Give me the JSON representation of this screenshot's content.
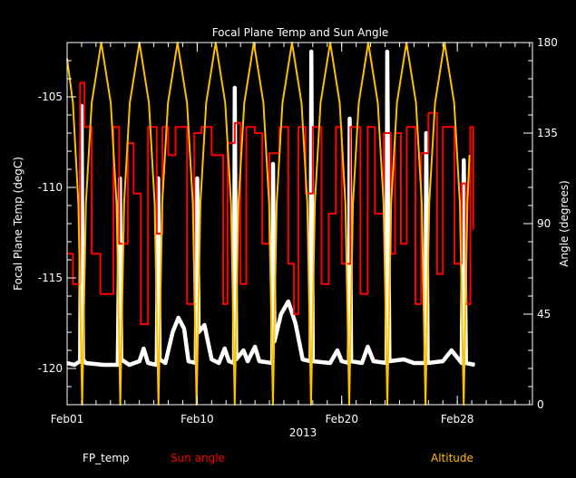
{
  "chart_data": {
    "type": "line",
    "title": "Focal Plane Temp and Sun Angle",
    "xlabel": "2013",
    "ylabel": "Focal Plane Temp (degC)",
    "ylabel_right": "Angle (degrees)",
    "x_units": "days since Feb01 2013",
    "xlim": [
      0,
      32.2
    ],
    "ylim": [
      -122,
      -102
    ],
    "ylim_right": [
      0,
      180
    ],
    "x_ticks": [
      {
        "day": 0,
        "label": "Feb01"
      },
      {
        "day": 9,
        "label": "Feb10"
      },
      {
        "day": 19,
        "label": "Feb20"
      },
      {
        "day": 27,
        "label": "Feb28"
      }
    ],
    "y_ticks": [
      {
        "value": -105,
        "label": "-105"
      },
      {
        "value": -110,
        "label": "-110"
      },
      {
        "value": -115,
        "label": "-115"
      },
      {
        "value": -120,
        "label": "-120"
      }
    ],
    "y_ticks_right": [
      {
        "value": 0,
        "label": "0"
      },
      {
        "value": 45,
        "label": "45"
      },
      {
        "value": 90,
        "label": "90"
      },
      {
        "value": 135,
        "label": "135"
      },
      {
        "value": 180,
        "label": "180"
      }
    ],
    "grid": false,
    "legend_placement": "bottom",
    "series": [
      {
        "name": "FP_temp",
        "axis": "left",
        "color": "#ffffff",
        "x": [
          0,
          0.5,
          0.9,
          1.0,
          1.1,
          1.3,
          2.5,
          3.5,
          3.65,
          3.75,
          4.3,
          5.0,
          5.3,
          5.6,
          6.2,
          6.3,
          6.4,
          6.8,
          7.3,
          7.7,
          8.1,
          8.4,
          8.9,
          9.0,
          9.1,
          9.5,
          10.0,
          10.5,
          10.9,
          11.2,
          11.55,
          11.6,
          11.7,
          12.2,
          12.5,
          13.0,
          13.3,
          14.2,
          14.25,
          14.35,
          14.8,
          15.3,
          15.8,
          16.3,
          16.85,
          16.9,
          17.0,
          18.2,
          18.7,
          19.0,
          19.5,
          19.55,
          19.65,
          20.4,
          20.8,
          21.2,
          22.1,
          22.15,
          22.3,
          23.3,
          24.0,
          24.8,
          24.85,
          24.95,
          26.0,
          26.6,
          27.3,
          27.45,
          27.6,
          28.2
        ],
        "y": [
          -119.7,
          -119.8,
          -119.6,
          -105.5,
          -119.5,
          -119.7,
          -119.8,
          -119.8,
          -109.5,
          -119.5,
          -119.8,
          -119.6,
          -118.9,
          -119.7,
          -119.8,
          -109.5,
          -119.5,
          -119.7,
          -118.0,
          -117.2,
          -117.8,
          -119.6,
          -119.7,
          -109.5,
          -118.0,
          -117.6,
          -119.5,
          -119.7,
          -118.9,
          -119.6,
          -119.7,
          -104.5,
          -119.5,
          -119.0,
          -119.6,
          -118.8,
          -119.6,
          -119.7,
          -108.7,
          -118.5,
          -117.0,
          -116.3,
          -117.5,
          -119.5,
          -119.6,
          -102.5,
          -119.6,
          -119.7,
          -119.0,
          -119.6,
          -119.7,
          -106.2,
          -119.6,
          -119.7,
          -118.8,
          -119.6,
          -119.7,
          -102.5,
          -119.6,
          -119.5,
          -119.7,
          -119.7,
          -107.0,
          -119.7,
          -119.6,
          -119.0,
          -119.7,
          -108.5,
          -119.7,
          -119.8
        ]
      },
      {
        "name": "Sun angle",
        "axis": "right",
        "color": "#ff0000",
        "step": true,
        "x": [
          0.0,
          0.4,
          0.9,
          1.2,
          1.7,
          2.3,
          3.2,
          3.6,
          4.2,
          4.6,
          5.1,
          5.6,
          6.2,
          6.6,
          7.0,
          7.5,
          8.3,
          8.8,
          9.3,
          10.0,
          10.8,
          11.1,
          11.6,
          12.0,
          12.4,
          13.0,
          13.5,
          14.0,
          14.7,
          15.3,
          15.7,
          16.0,
          16.5,
          17.0,
          17.6,
          18.1,
          18.6,
          19.0,
          19.6,
          20.3,
          20.8,
          21.3,
          21.9,
          22.4,
          22.7,
          23.1,
          23.5,
          24.1,
          24.5,
          25.0,
          25.6,
          26.0,
          26.8,
          27.3,
          27.6,
          27.9,
          28.1
        ],
        "y": [
          75,
          60,
          160,
          138,
          75,
          55,
          138,
          80,
          130,
          105,
          40,
          138,
          85,
          138,
          124,
          138,
          50,
          135,
          138,
          124,
          50,
          130,
          140,
          60,
          138,
          135,
          80,
          125,
          138,
          70,
          45,
          138,
          105,
          138,
          60,
          95,
          138,
          70,
          138,
          55,
          138,
          95,
          135,
          75,
          135,
          80,
          138,
          50,
          125,
          145,
          65,
          138,
          70,
          110,
          50,
          138,
          87
        ]
      },
      {
        "name": "Altitude",
        "axis": "right",
        "color": "#ffc000",
        "x": [
          0,
          0.4,
          0.78,
          1.04,
          1.3,
          1.7,
          2.36,
          3.02,
          3.42,
          3.68,
          3.94,
          4.34,
          5.0,
          5.66,
          6.06,
          6.32,
          6.58,
          6.98,
          7.64,
          8.3,
          8.7,
          8.96,
          9.22,
          9.62,
          10.28,
          10.94,
          11.34,
          11.6,
          11.86,
          12.26,
          12.92,
          13.58,
          13.98,
          14.24,
          14.5,
          14.9,
          15.56,
          16.22,
          16.62,
          16.88,
          17.14,
          17.54,
          18.2,
          18.86,
          19.26,
          19.52,
          19.78,
          20.18,
          20.84,
          21.5,
          21.9,
          22.16,
          22.42,
          22.82,
          23.48,
          24.14,
          24.54,
          24.8,
          25.06,
          25.46,
          26.12,
          26.78,
          27.18,
          27.44,
          27.7,
          27.84
        ],
        "y": [
          172,
          150,
          100,
          0,
          100,
          150,
          180,
          150,
          100,
          0,
          100,
          150,
          180,
          150,
          100,
          0,
          100,
          150,
          180,
          150,
          100,
          0,
          100,
          150,
          180,
          150,
          100,
          0,
          100,
          150,
          180,
          150,
          100,
          0,
          100,
          150,
          180,
          150,
          100,
          0,
          100,
          150,
          180,
          150,
          100,
          0,
          100,
          150,
          180,
          150,
          100,
          0,
          100,
          150,
          180,
          150,
          100,
          0,
          100,
          150,
          180,
          150,
          100,
          0,
          100,
          124
        ]
      }
    ]
  }
}
